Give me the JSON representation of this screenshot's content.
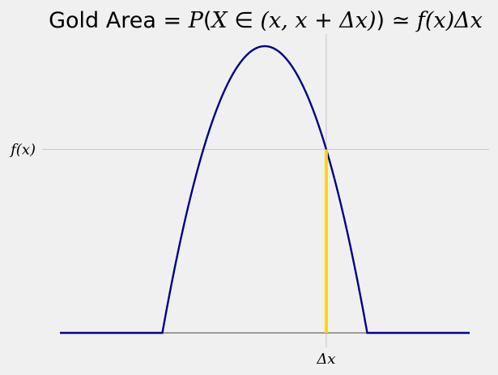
{
  "chart_data": {
    "type": "line",
    "title_parts": {
      "prefix": "Gold Area = ",
      "P": "P",
      "open": "(",
      "X": "X",
      "in": " ∈ ",
      "set": "(x, x + Δx)",
      "close": ")",
      "approx": " ≃ ",
      "fx": "f",
      "fx_arg": "(x)",
      "dx": "Δx"
    },
    "ytick_label_f": "f",
    "ytick_label_x": "(x)",
    "xtick_label": "Δx",
    "grid": true,
    "series": [
      {
        "color": "#00008b",
        "kind": "density"
      }
    ],
    "highlight_color": "#ffd700",
    "baseline_color": "#808080",
    "grid_color": "#cbcbcb",
    "domain": [
      -0.5,
      1.5
    ],
    "support": [
      0,
      1
    ],
    "density": "parabola peaking at x=0.5, zero at support edges",
    "x_highlight": 0.8,
    "f_at_highlight": 0.64
  }
}
